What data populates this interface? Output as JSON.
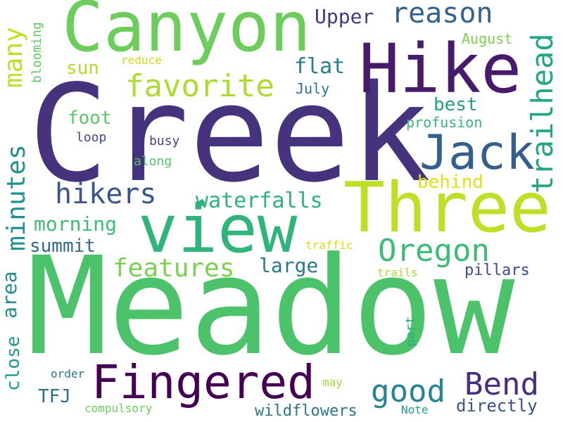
{
  "words": [
    {
      "text": "Meadow",
      "color": "#4cc26a"
    },
    {
      "text": "Creek",
      "color": "#46337e"
    },
    {
      "text": "Canyon",
      "color": "#6ccd5a"
    },
    {
      "text": "Hike",
      "color": "#481a6c"
    },
    {
      "text": "Three",
      "color": "#bddf26"
    },
    {
      "text": "view",
      "color": "#2fb47c"
    },
    {
      "text": "Fingered",
      "color": "#440154"
    },
    {
      "text": "Jack",
      "color": "#355f8d"
    },
    {
      "text": "trailhead",
      "color": "#22a785"
    },
    {
      "text": "Oregon",
      "color": "#3dbc74"
    },
    {
      "text": "Bend",
      "color": "#472f7d"
    },
    {
      "text": "good",
      "color": "#25848e"
    },
    {
      "text": "favorite",
      "color": "#addc30"
    },
    {
      "text": "reason",
      "color": "#33638d"
    },
    {
      "text": "hikers",
      "color": "#39568c"
    },
    {
      "text": "features",
      "color": "#7ad151"
    },
    {
      "text": "waterfalls",
      "color": "#2db27d"
    },
    {
      "text": "minutes",
      "color": "#20928c"
    },
    {
      "text": "many",
      "color": "#bddf26"
    },
    {
      "text": "Upper",
      "color": "#443983"
    },
    {
      "text": "flat",
      "color": "#277f8e"
    },
    {
      "text": "sun",
      "color": "#b5de2b"
    },
    {
      "text": "best",
      "color": "#1f9e89"
    },
    {
      "text": "behind",
      "color": "#dde318"
    },
    {
      "text": "morning",
      "color": "#3dbc74"
    },
    {
      "text": "summit",
      "color": "#31688e"
    },
    {
      "text": "large",
      "color": "#2a788e"
    },
    {
      "text": "pillars",
      "color": "#3e4a89"
    },
    {
      "text": "area",
      "color": "#228c8d"
    },
    {
      "text": "close",
      "color": "#1f9a8a"
    },
    {
      "text": "TFJ",
      "color": "#2c728e"
    },
    {
      "text": "directly",
      "color": "#3b528b"
    },
    {
      "text": "wildflowers",
      "color": "#2a788e"
    },
    {
      "text": "foot",
      "color": "#5ec962"
    },
    {
      "text": "July",
      "color": "#2c728e"
    },
    {
      "text": "August",
      "color": "#7ad151"
    },
    {
      "text": "profusion",
      "color": "#35b779"
    },
    {
      "text": "loop",
      "color": "#3e4989"
    },
    {
      "text": "busy",
      "color": "#414487"
    },
    {
      "text": "along",
      "color": "#52c569"
    },
    {
      "text": "reduce",
      "color": "#c8e020"
    },
    {
      "text": "blooming",
      "color": "#5ec962"
    },
    {
      "text": "traffic",
      "color": "#d2e21b"
    },
    {
      "text": "trails",
      "color": "#a5db36"
    },
    {
      "text": "part",
      "color": "#29af7f"
    },
    {
      "text": "order",
      "color": "#2d708e"
    },
    {
      "text": "may",
      "color": "#a0da39"
    },
    {
      "text": "compulsory",
      "color": "#6ece58"
    },
    {
      "text": "Note",
      "color": "#1fa188"
    }
  ]
}
